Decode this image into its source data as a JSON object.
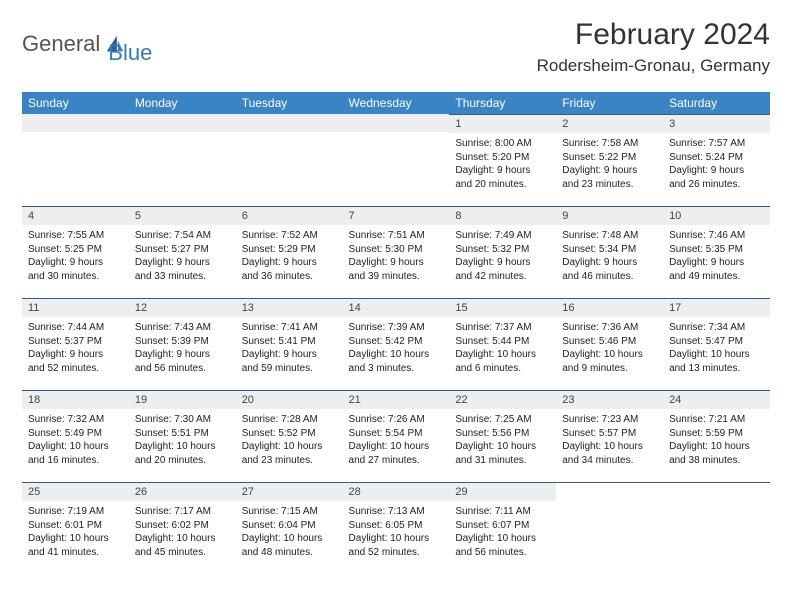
{
  "logo": {
    "text1": "General",
    "text2": "Blue"
  },
  "title": "February 2024",
  "location": "Rodersheim-Gronau, Germany",
  "colors": {
    "header_bg": "#3a84c4",
    "daynum_bg": "#eceeef",
    "border": "#2f5d88"
  },
  "weekdays": [
    "Sunday",
    "Monday",
    "Tuesday",
    "Wednesday",
    "Thursday",
    "Friday",
    "Saturday"
  ],
  "weeks": [
    [
      null,
      null,
      null,
      null,
      {
        "n": "1",
        "sr": "Sunrise: 8:00 AM",
        "ss": "Sunset: 5:20 PM",
        "d1": "Daylight: 9 hours",
        "d2": "and 20 minutes."
      },
      {
        "n": "2",
        "sr": "Sunrise: 7:58 AM",
        "ss": "Sunset: 5:22 PM",
        "d1": "Daylight: 9 hours",
        "d2": "and 23 minutes."
      },
      {
        "n": "3",
        "sr": "Sunrise: 7:57 AM",
        "ss": "Sunset: 5:24 PM",
        "d1": "Daylight: 9 hours",
        "d2": "and 26 minutes."
      }
    ],
    [
      {
        "n": "4",
        "sr": "Sunrise: 7:55 AM",
        "ss": "Sunset: 5:25 PM",
        "d1": "Daylight: 9 hours",
        "d2": "and 30 minutes."
      },
      {
        "n": "5",
        "sr": "Sunrise: 7:54 AM",
        "ss": "Sunset: 5:27 PM",
        "d1": "Daylight: 9 hours",
        "d2": "and 33 minutes."
      },
      {
        "n": "6",
        "sr": "Sunrise: 7:52 AM",
        "ss": "Sunset: 5:29 PM",
        "d1": "Daylight: 9 hours",
        "d2": "and 36 minutes."
      },
      {
        "n": "7",
        "sr": "Sunrise: 7:51 AM",
        "ss": "Sunset: 5:30 PM",
        "d1": "Daylight: 9 hours",
        "d2": "and 39 minutes."
      },
      {
        "n": "8",
        "sr": "Sunrise: 7:49 AM",
        "ss": "Sunset: 5:32 PM",
        "d1": "Daylight: 9 hours",
        "d2": "and 42 minutes."
      },
      {
        "n": "9",
        "sr": "Sunrise: 7:48 AM",
        "ss": "Sunset: 5:34 PM",
        "d1": "Daylight: 9 hours",
        "d2": "and 46 minutes."
      },
      {
        "n": "10",
        "sr": "Sunrise: 7:46 AM",
        "ss": "Sunset: 5:35 PM",
        "d1": "Daylight: 9 hours",
        "d2": "and 49 minutes."
      }
    ],
    [
      {
        "n": "11",
        "sr": "Sunrise: 7:44 AM",
        "ss": "Sunset: 5:37 PM",
        "d1": "Daylight: 9 hours",
        "d2": "and 52 minutes."
      },
      {
        "n": "12",
        "sr": "Sunrise: 7:43 AM",
        "ss": "Sunset: 5:39 PM",
        "d1": "Daylight: 9 hours",
        "d2": "and 56 minutes."
      },
      {
        "n": "13",
        "sr": "Sunrise: 7:41 AM",
        "ss": "Sunset: 5:41 PM",
        "d1": "Daylight: 9 hours",
        "d2": "and 59 minutes."
      },
      {
        "n": "14",
        "sr": "Sunrise: 7:39 AM",
        "ss": "Sunset: 5:42 PM",
        "d1": "Daylight: 10 hours",
        "d2": "and 3 minutes."
      },
      {
        "n": "15",
        "sr": "Sunrise: 7:37 AM",
        "ss": "Sunset: 5:44 PM",
        "d1": "Daylight: 10 hours",
        "d2": "and 6 minutes."
      },
      {
        "n": "16",
        "sr": "Sunrise: 7:36 AM",
        "ss": "Sunset: 5:46 PM",
        "d1": "Daylight: 10 hours",
        "d2": "and 9 minutes."
      },
      {
        "n": "17",
        "sr": "Sunrise: 7:34 AM",
        "ss": "Sunset: 5:47 PM",
        "d1": "Daylight: 10 hours",
        "d2": "and 13 minutes."
      }
    ],
    [
      {
        "n": "18",
        "sr": "Sunrise: 7:32 AM",
        "ss": "Sunset: 5:49 PM",
        "d1": "Daylight: 10 hours",
        "d2": "and 16 minutes."
      },
      {
        "n": "19",
        "sr": "Sunrise: 7:30 AM",
        "ss": "Sunset: 5:51 PM",
        "d1": "Daylight: 10 hours",
        "d2": "and 20 minutes."
      },
      {
        "n": "20",
        "sr": "Sunrise: 7:28 AM",
        "ss": "Sunset: 5:52 PM",
        "d1": "Daylight: 10 hours",
        "d2": "and 23 minutes."
      },
      {
        "n": "21",
        "sr": "Sunrise: 7:26 AM",
        "ss": "Sunset: 5:54 PM",
        "d1": "Daylight: 10 hours",
        "d2": "and 27 minutes."
      },
      {
        "n": "22",
        "sr": "Sunrise: 7:25 AM",
        "ss": "Sunset: 5:56 PM",
        "d1": "Daylight: 10 hours",
        "d2": "and 31 minutes."
      },
      {
        "n": "23",
        "sr": "Sunrise: 7:23 AM",
        "ss": "Sunset: 5:57 PM",
        "d1": "Daylight: 10 hours",
        "d2": "and 34 minutes."
      },
      {
        "n": "24",
        "sr": "Sunrise: 7:21 AM",
        "ss": "Sunset: 5:59 PM",
        "d1": "Daylight: 10 hours",
        "d2": "and 38 minutes."
      }
    ],
    [
      {
        "n": "25",
        "sr": "Sunrise: 7:19 AM",
        "ss": "Sunset: 6:01 PM",
        "d1": "Daylight: 10 hours",
        "d2": "and 41 minutes."
      },
      {
        "n": "26",
        "sr": "Sunrise: 7:17 AM",
        "ss": "Sunset: 6:02 PM",
        "d1": "Daylight: 10 hours",
        "d2": "and 45 minutes."
      },
      {
        "n": "27",
        "sr": "Sunrise: 7:15 AM",
        "ss": "Sunset: 6:04 PM",
        "d1": "Daylight: 10 hours",
        "d2": "and 48 minutes."
      },
      {
        "n": "28",
        "sr": "Sunrise: 7:13 AM",
        "ss": "Sunset: 6:05 PM",
        "d1": "Daylight: 10 hours",
        "d2": "and 52 minutes."
      },
      {
        "n": "29",
        "sr": "Sunrise: 7:11 AM",
        "ss": "Sunset: 6:07 PM",
        "d1": "Daylight: 10 hours",
        "d2": "and 56 minutes."
      },
      null,
      null
    ]
  ]
}
